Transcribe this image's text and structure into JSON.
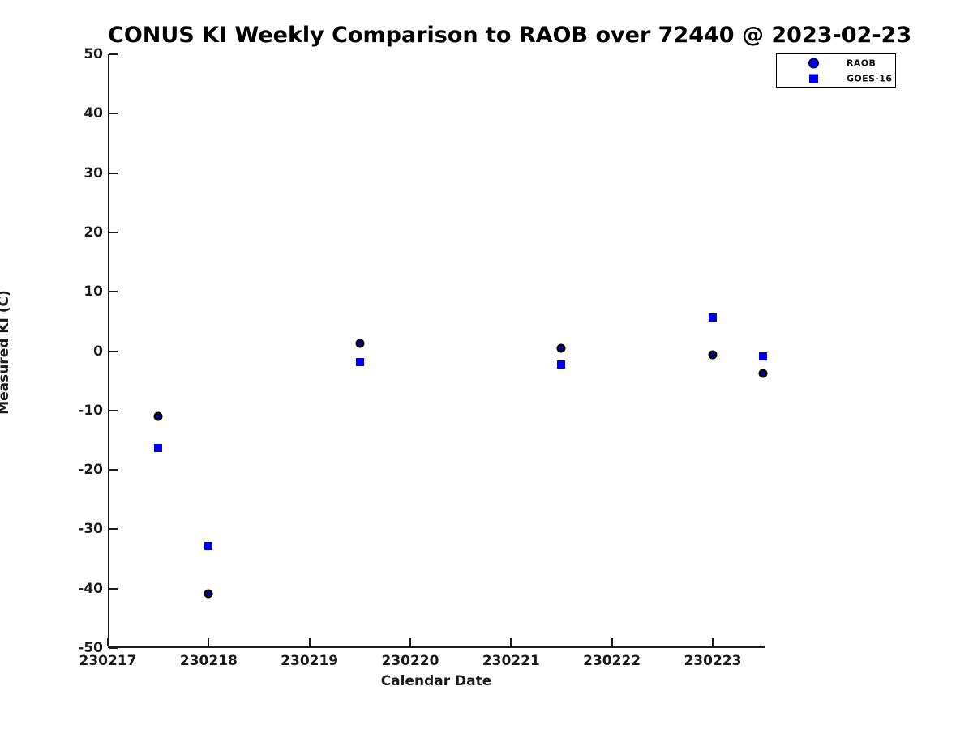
{
  "chart_data": {
    "type": "scatter",
    "title": "CONUS KI Weekly Comparison to RAOB over 72440 @ 2023-02-23",
    "xlabel": "Calendar Date",
    "ylabel": "Measured KI (C)",
    "x_tick_labels": [
      "230217",
      "230218",
      "230219",
      "230220",
      "230221",
      "230222",
      "230223"
    ],
    "x_tick_offsets": [
      0,
      1,
      2,
      3,
      4,
      5,
      6
    ],
    "x_range": [
      0,
      6.515
    ],
    "y_ticks": [
      50,
      40,
      30,
      20,
      10,
      0,
      -10,
      -20,
      -30,
      -40,
      -50
    ],
    "y_range": [
      -50,
      50
    ],
    "grid": false,
    "legend_position": "top-right",
    "colors": {
      "raob_face": "#0000ee",
      "raob_edge": "#000000",
      "goes16": "#0000ee",
      "axis": "#1a1a1a"
    },
    "series": [
      {
        "name": "RAOB",
        "marker": "circle",
        "points": [
          {
            "x_day_offset": 0.5,
            "y": -11.0
          },
          {
            "x_day_offset": 1.0,
            "y": -40.8
          },
          {
            "x_day_offset": 2.5,
            "y": 1.3
          },
          {
            "x_day_offset": 4.5,
            "y": 0.5
          },
          {
            "x_day_offset": 6.0,
            "y": -0.6
          },
          {
            "x_day_offset": 6.5,
            "y": -3.8
          }
        ]
      },
      {
        "name": "GOES-16",
        "marker": "square",
        "points": [
          {
            "x_day_offset": 0.5,
            "y": -16.3
          },
          {
            "x_day_offset": 1.0,
            "y": -32.8
          },
          {
            "x_day_offset": 2.5,
            "y": -1.8
          },
          {
            "x_day_offset": 4.5,
            "y": -2.2
          },
          {
            "x_day_offset": 6.0,
            "y": 5.6
          },
          {
            "x_day_offset": 6.5,
            "y": -0.9
          }
        ]
      }
    ]
  }
}
